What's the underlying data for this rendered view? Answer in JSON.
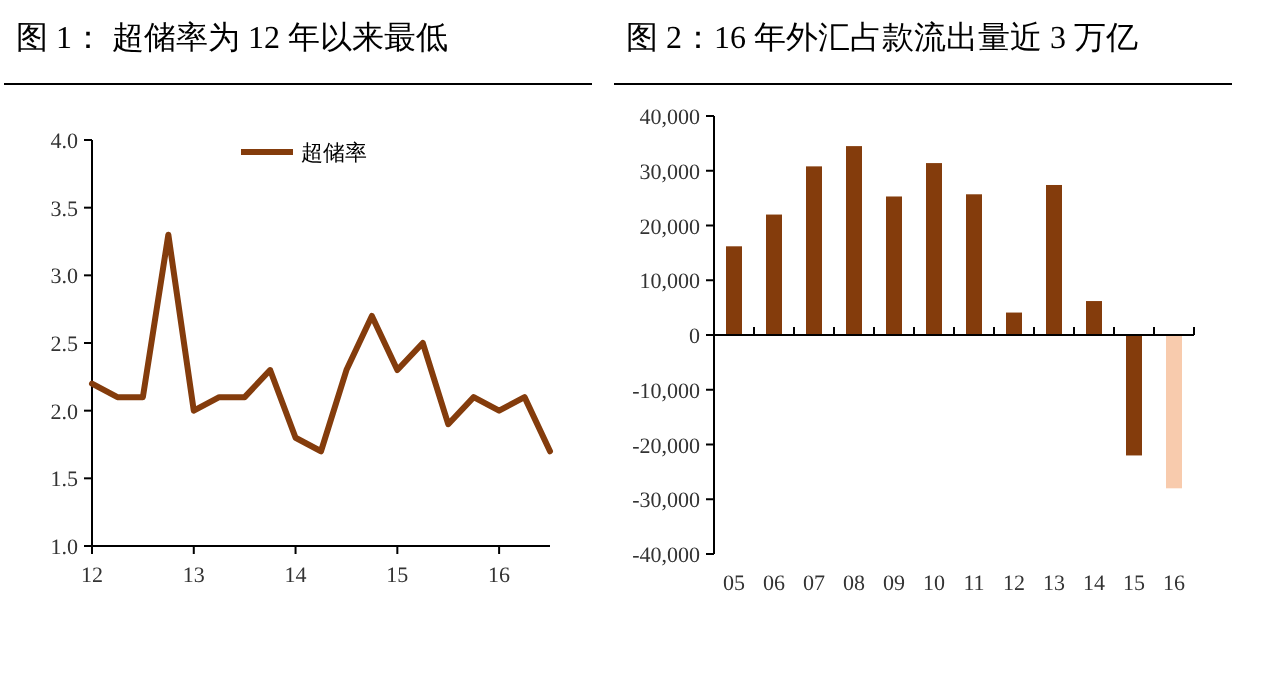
{
  "chart_data": [
    {
      "type": "line",
      "title": "图 1：  超储率为 12 年以来最低",
      "x": [
        12,
        12.25,
        12.5,
        12.75,
        13,
        13.25,
        13.5,
        13.75,
        14,
        14.25,
        14.5,
        14.75,
        15,
        15.25,
        15.5,
        15.75,
        16,
        16.25,
        16.5
      ],
      "series": [
        {
          "name": "超储率",
          "color": "#843c0c",
          "values": [
            2.2,
            2.1,
            2.1,
            3.3,
            2.0,
            2.1,
            2.1,
            2.3,
            1.8,
            1.7,
            2.3,
            2.7,
            2.3,
            2.5,
            1.9,
            2.1,
            2.0,
            2.1,
            1.7
          ]
        }
      ],
      "xlim": [
        12,
        16.5
      ],
      "xticks": [
        12,
        13,
        14,
        15,
        16
      ],
      "ylim": [
        1,
        4
      ],
      "yticks": [
        {
          "value": 1,
          "label": "1.0"
        },
        {
          "value": 1.5,
          "label": "1.5"
        },
        {
          "value": 2,
          "label": "2.0"
        },
        {
          "value": 2.5,
          "label": "2.5"
        },
        {
          "value": 3,
          "label": "3.0"
        },
        {
          "value": 3.5,
          "label": "3.5"
        },
        {
          "value": 4,
          "label": "4.0"
        }
      ],
      "legend": "top",
      "marker": "none",
      "line_style": "solid"
    },
    {
      "type": "bar",
      "title": "图 2：16 年外汇占款流出量近 3 万亿",
      "categories": [
        "05",
        "06",
        "07",
        "08",
        "09",
        "10",
        "11",
        "12",
        "13",
        "14",
        "15",
        "16"
      ],
      "values": [
        16200,
        22000,
        30800,
        34500,
        25300,
        31400,
        25700,
        4100,
        27400,
        6200,
        -22000,
        -28000
      ],
      "colors": [
        "#843c0c",
        "#843c0c",
        "#843c0c",
        "#843c0c",
        "#843c0c",
        "#843c0c",
        "#843c0c",
        "#843c0c",
        "#843c0c",
        "#843c0c",
        "#843c0c",
        "#f8cbad"
      ],
      "ylim": [
        -40000,
        40000
      ],
      "yticks": [
        {
          "value": -40000,
          "label": "-40,000"
        },
        {
          "value": -30000,
          "label": "-30,000"
        },
        {
          "value": -20000,
          "label": "-20,000"
        },
        {
          "value": -10000,
          "label": "-10,000"
        },
        0,
        {
          "value": 10000,
          "label": "10,000"
        },
        {
          "value": 20000,
          "label": "20,000"
        },
        {
          "value": 30000,
          "label": "30,000"
        },
        {
          "value": 40000,
          "label": "40,000"
        }
      ]
    }
  ]
}
